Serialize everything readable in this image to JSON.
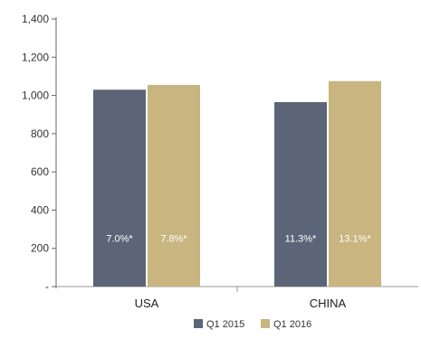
{
  "chart_data": {
    "type": "bar",
    "categories": [
      "USA",
      "CHINA"
    ],
    "series": [
      {
        "name": "Q1 2015",
        "values": [
          1030,
          965
        ],
        "labels": [
          "7.0%*",
          "11.3%*"
        ],
        "color": "#5b6577"
      },
      {
        "name": "Q1 2016",
        "values": [
          1055,
          1075
        ],
        "labels": [
          "7.8%*",
          "13.1%*"
        ],
        "color": "#c8b57f"
      }
    ],
    "ylim": [
      0,
      1400
    ],
    "yticks": [
      0,
      200,
      400,
      600,
      800,
      1000,
      1200,
      1400
    ],
    "ytick_labels": [
      "-",
      "200",
      "400",
      "600",
      "800",
      "1,000",
      "1,200",
      "1,400"
    ],
    "grid": false,
    "legend": "bottom"
  }
}
